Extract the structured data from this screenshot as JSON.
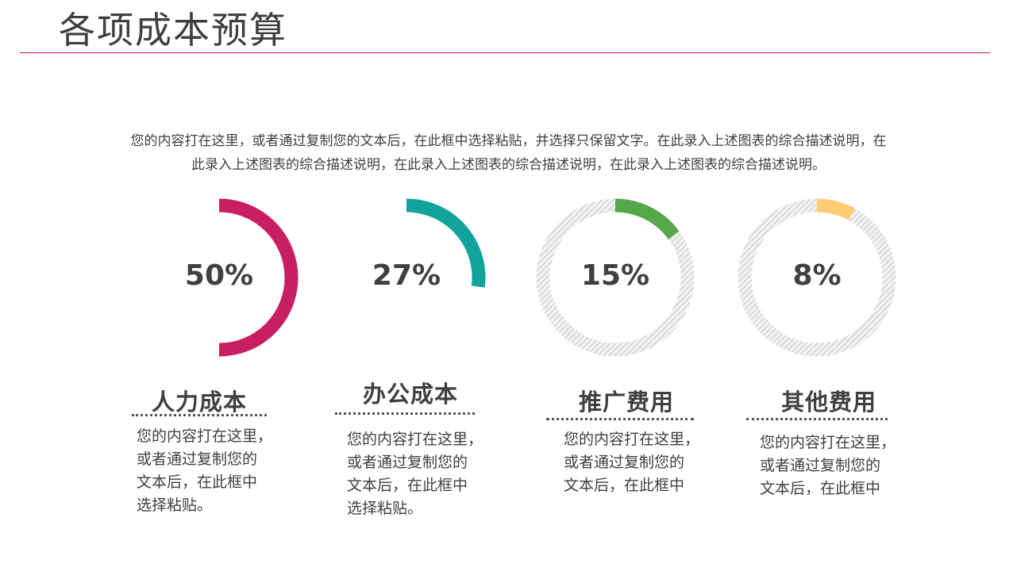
{
  "page": {
    "title": "各项成本预算",
    "description": [
      "您的内容打在这里，或者通过复制您的文本后，在此框中选择粘贴，并选择只保留文字。在此录入上述图表的综合描述说明，在",
      "此录入上述图表的综合描述说明，在此录入上述图表的综合描述说明，在此录入上述图表的综合描述说明。"
    ]
  },
  "items": [
    {
      "label": "人力成本",
      "percent_text": "50%",
      "note": [
        "您的内容打在这里，",
        "或者通过复制您的",
        "文本后，在此框中",
        "选择粘贴。"
      ]
    },
    {
      "label": "办公成本",
      "percent_text": "27%",
      "note": [
        "您的内容打在这里，",
        "或者通过复制您的",
        "文本后，在此框中",
        "选择粘贴。"
      ]
    },
    {
      "label": "推广费用",
      "percent_text": "15%",
      "note": [
        "您的内容打在这里，",
        "或者通过复制您的",
        "文本后，在此框中"
      ]
    },
    {
      "label": "其他费用",
      "percent_text": "8%",
      "note": [
        "您的内容打在这里，",
        "或者通过复制您的",
        "文本后，在此框中"
      ]
    }
  ],
  "chart_data": [
    {
      "type": "pie",
      "variant": "donut",
      "value": 50,
      "unit": "%",
      "color": "#c81f63",
      "label": "人力成本",
      "remainder_style": "none"
    },
    {
      "type": "pie",
      "variant": "donut",
      "value": 27,
      "unit": "%",
      "color": "#11a39c",
      "label": "办公成本",
      "remainder_style": "none"
    },
    {
      "type": "pie",
      "variant": "donut",
      "value": 15,
      "unit": "%",
      "color": "#56a64a",
      "label": "推广费用",
      "remainder_style": "hatched-gray"
    },
    {
      "type": "pie",
      "variant": "donut",
      "value": 8,
      "unit": "%",
      "color": "#ffcb73",
      "label": "其他费用",
      "remainder_style": "hatched-gray"
    }
  ],
  "colors": {
    "title_rule": "#c2185b",
    "text": "#3f3f3f"
  }
}
